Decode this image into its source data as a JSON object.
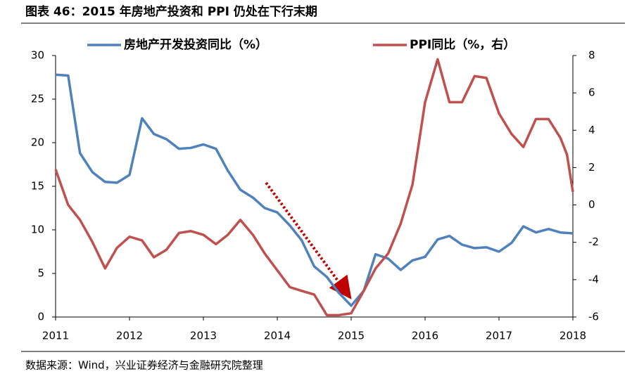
{
  "chart_data": {
    "type": "line",
    "title": "图表 46：2015 年房地产投资和 PPI 仍处在下行末期",
    "source": "数据来源：Wind，兴业证券经济与金融研究院整理",
    "xlim": [
      2011,
      2018
    ],
    "xticks": [
      2011,
      2012,
      2013,
      2014,
      2015,
      2016,
      2017,
      2018
    ],
    "ylim": [
      0,
      30
    ],
    "yticks": [
      0,
      5,
      10,
      15,
      20,
      25,
      30
    ],
    "y2lim": [
      -6,
      8
    ],
    "y2ticks": [
      -6,
      -4,
      -2,
      0,
      2,
      4,
      6,
      8
    ],
    "legend": "top",
    "series": [
      {
        "name": "房地产开发投资同比（%）",
        "color": "#4f81bd",
        "x": [
          2011,
          2011.17,
          2011.33,
          2011.5,
          2011.67,
          2011.83,
          2012,
          2012.17,
          2012.33,
          2012.5,
          2012.67,
          2012.83,
          2013,
          2013.17,
          2013.33,
          2013.5,
          2013.67,
          2013.83,
          2014,
          2014.17,
          2014.33,
          2014.5,
          2014.67,
          2014.83,
          2015,
          2015.17,
          2015.33,
          2015.5,
          2015.67,
          2015.83,
          2016,
          2016.17,
          2016.33,
          2016.5,
          2016.67,
          2016.83,
          2017,
          2017.17,
          2017.33,
          2017.5,
          2017.67,
          2017.83,
          2018
        ],
        "values": [
          27.8,
          27.7,
          18.8,
          16.6,
          15.5,
          15.4,
          16.3,
          22.8,
          21.0,
          20.4,
          19.3,
          19.4,
          19.8,
          19.3,
          16.8,
          14.6,
          13.7,
          12.5,
          12.0,
          10.5,
          8.8,
          5.8,
          4.6,
          2.8,
          1.3,
          3.0,
          7.2,
          6.7,
          5.4,
          6.5,
          6.9,
          8.9,
          9.3,
          8.3,
          7.9,
          8.0,
          7.5,
          8.5,
          10.4,
          9.7,
          10.1,
          9.7,
          9.6
        ]
      },
      {
        "name": "PPI同比（%，右）",
        "color": "#c0504d",
        "axis": "y2",
        "x": [
          2011,
          2011.17,
          2011.33,
          2011.5,
          2011.67,
          2011.83,
          2012,
          2012.17,
          2012.33,
          2012.5,
          2012.67,
          2012.83,
          2013,
          2013.17,
          2013.33,
          2013.5,
          2013.67,
          2013.83,
          2014,
          2014.17,
          2014.33,
          2014.5,
          2014.67,
          2014.83,
          2015,
          2015.17,
          2015.33,
          2015.5,
          2015.67,
          2015.83,
          2016,
          2016.17,
          2016.33,
          2016.5,
          2016.67,
          2016.83,
          2017,
          2017.17,
          2017.33,
          2017.5,
          2017.67,
          2017.83,
          2017.92,
          2018
        ],
        "values": [
          1.9,
          0.0,
          -0.8,
          -2.0,
          -3.4,
          -2.3,
          -1.7,
          -1.9,
          -2.8,
          -2.4,
          -1.5,
          -1.4,
          -1.6,
          -2.1,
          -1.6,
          -0.8,
          -1.6,
          -2.6,
          -3.5,
          -4.4,
          -4.6,
          -4.8,
          -5.9,
          -5.9,
          -5.8,
          -4.6,
          -3.4,
          -2.6,
          -1.0,
          1.1,
          5.5,
          7.8,
          5.5,
          5.5,
          6.9,
          6.8,
          4.9,
          3.8,
          3.1,
          4.6,
          4.6,
          3.6,
          2.7,
          0.7
        ]
      }
    ]
  }
}
